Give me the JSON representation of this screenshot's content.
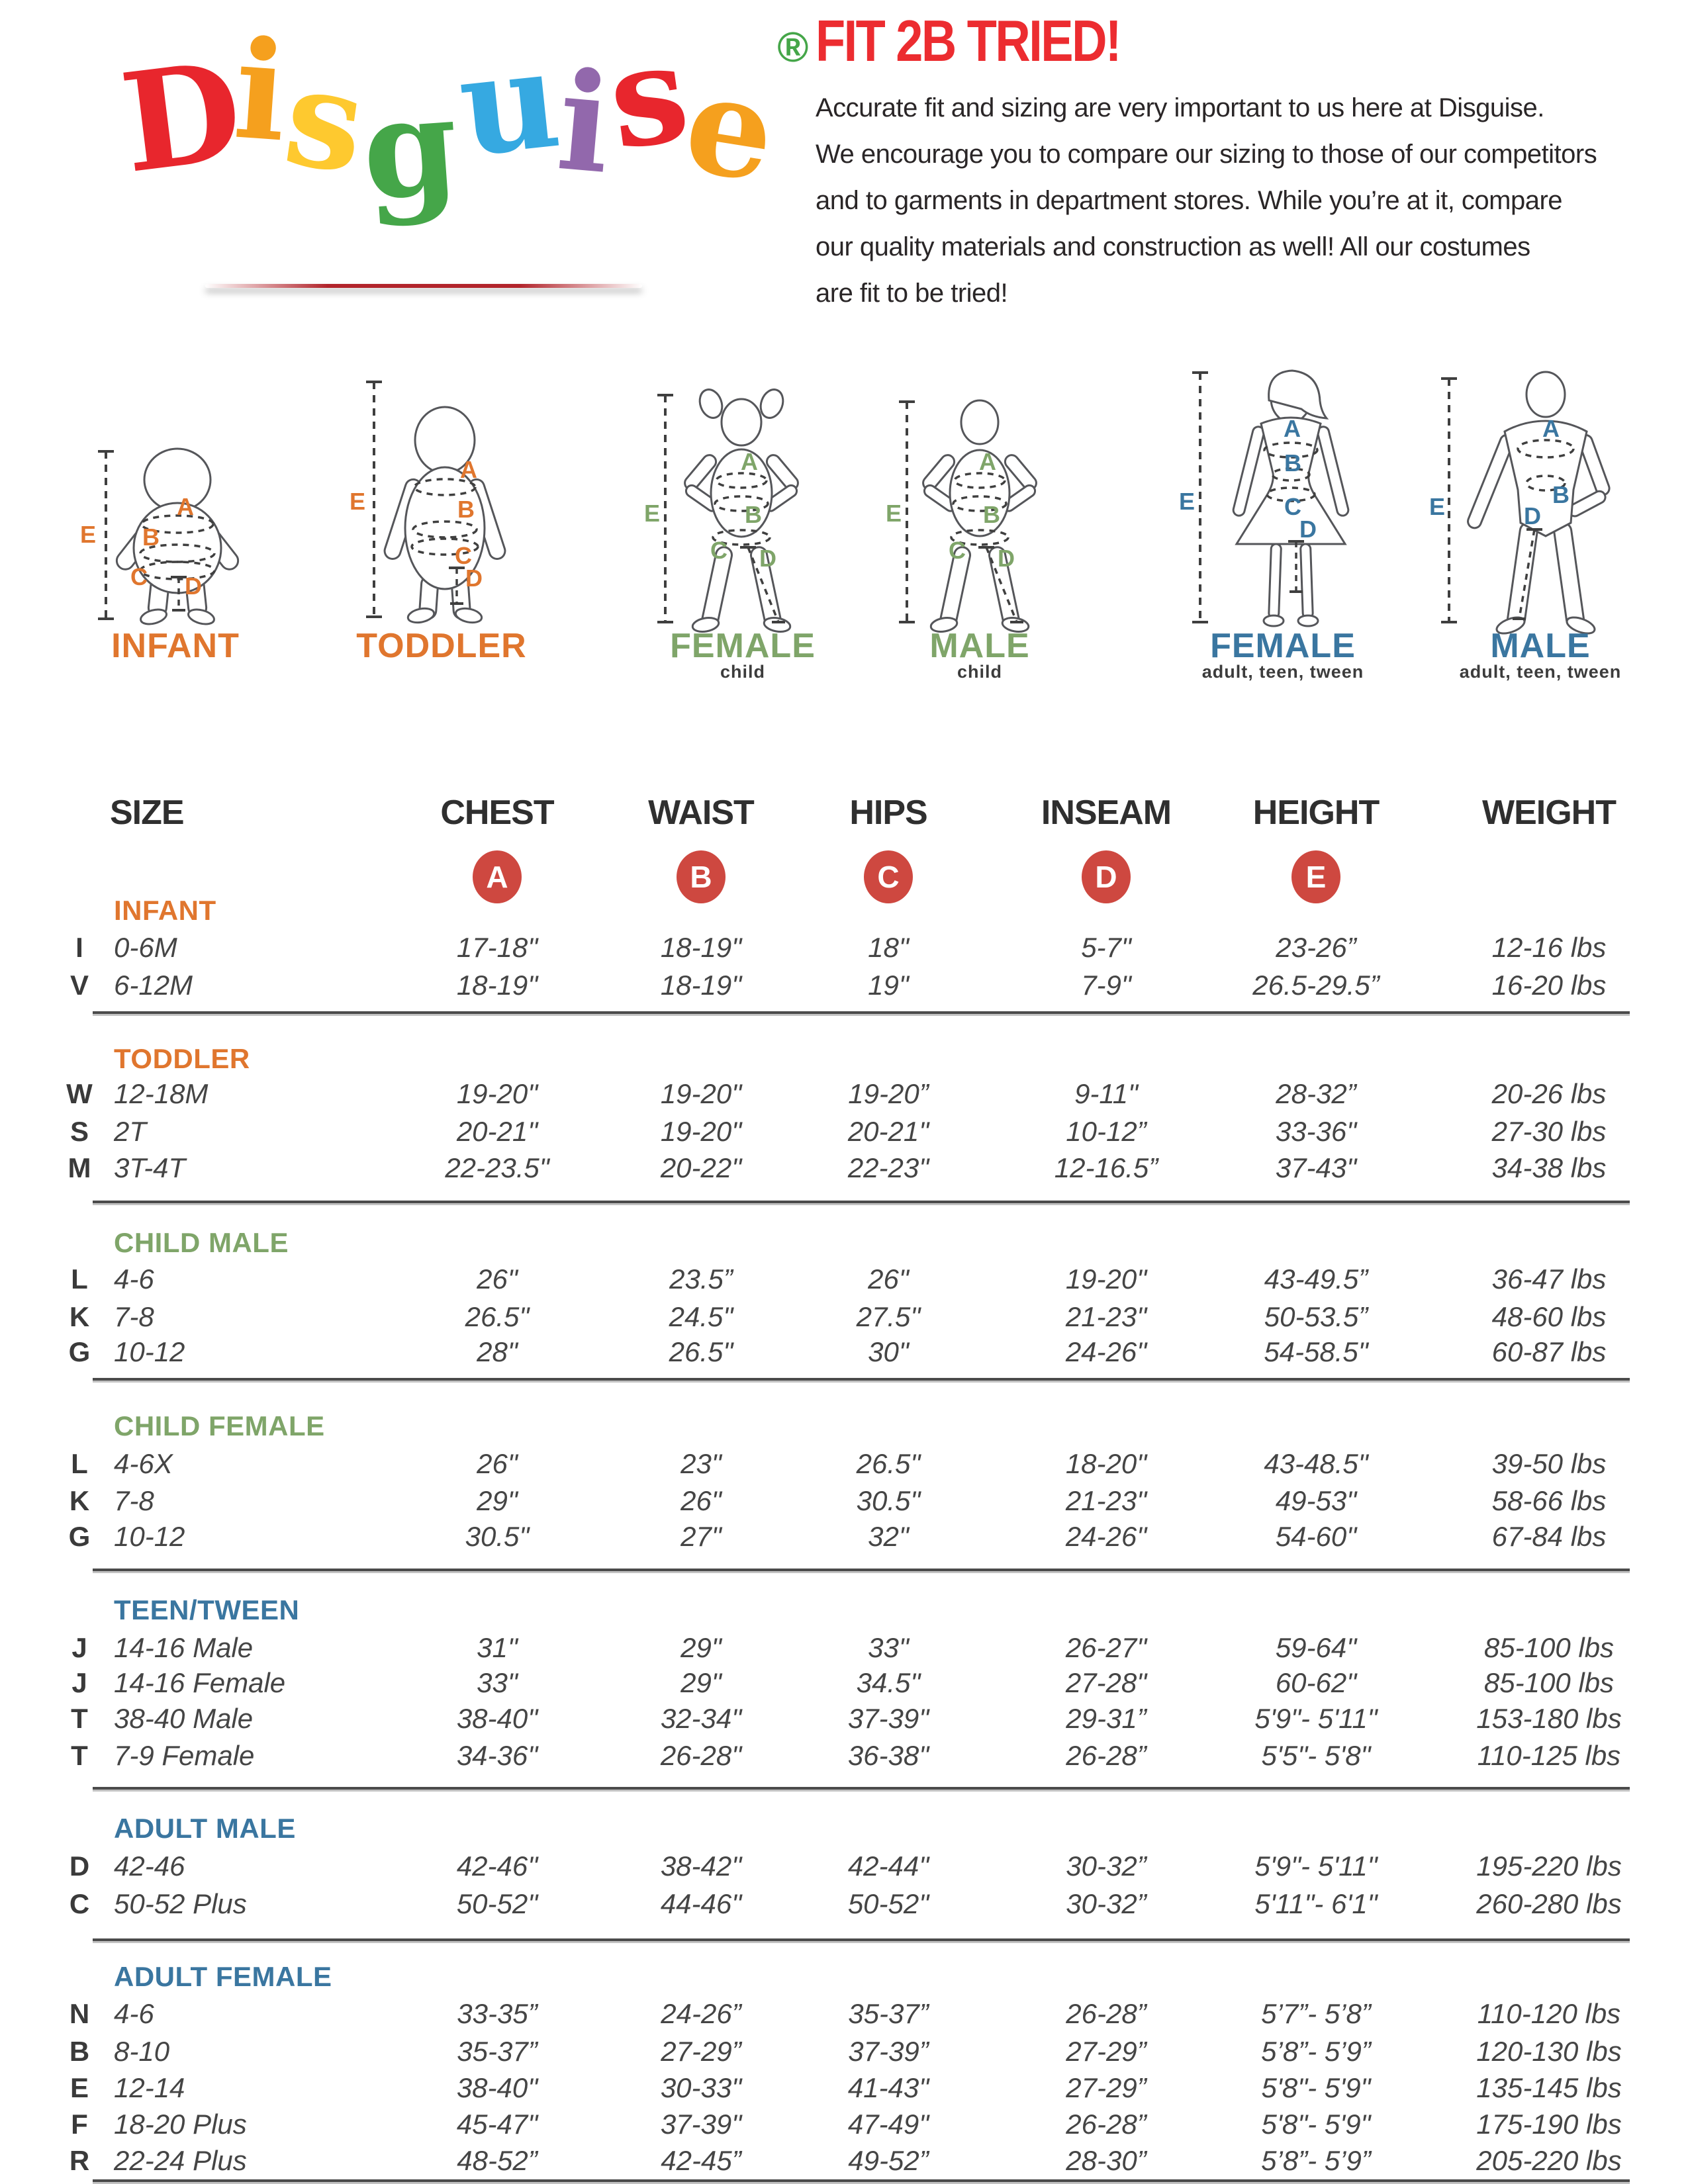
{
  "logo": {
    "word_letters": [
      {
        "ch": "D",
        "color": "#e8262d"
      },
      {
        "ch": "i",
        "color": "#f5a01e"
      },
      {
        "ch": "s",
        "color": "#fec92f"
      },
      {
        "ch": "g",
        "color": "#45a649"
      },
      {
        "ch": "u",
        "color": "#36a9e1"
      },
      {
        "ch": "i",
        "color": "#9268ac"
      },
      {
        "ch": "s",
        "color": "#e8262d"
      },
      {
        "ch": "e",
        "color": "#f5a01e"
      }
    ],
    "registered_mark": "®",
    "registered_color": "#45a649"
  },
  "intro": {
    "title": "FIT 2B TRIED!",
    "title_color": "#ec2c30",
    "lines": [
      "Accurate fit and sizing are very important to us here at Disguise.",
      "We encourage you to compare our sizing to those of our competitors",
      "and to garments in department stores. While you’re at it, compare",
      "our quality materials and construction as well! All our costumes",
      "are fit to be tried!"
    ]
  },
  "figures": [
    {
      "id": "infant",
      "label": "INFANT",
      "sublabel": "",
      "color": "#e0762e"
    },
    {
      "id": "toddler",
      "label": "TODDLER",
      "sublabel": "",
      "color": "#e0762e"
    },
    {
      "id": "female-child",
      "label": "FEMALE",
      "sublabel": "child",
      "color": "#7fa569"
    },
    {
      "id": "male-child",
      "label": "MALE",
      "sublabel": "child",
      "color": "#7fa569"
    },
    {
      "id": "female-adult",
      "label": "FEMALE",
      "sublabel": "adult, teen, tween",
      "color": "#3a76a0"
    },
    {
      "id": "male-adult",
      "label": "MALE",
      "sublabel": "adult, teen, tween",
      "color": "#3a76a0"
    }
  ],
  "measure_badges": [
    "A",
    "B",
    "C",
    "D",
    "E"
  ],
  "badge_color": "#ce4840",
  "table": {
    "columns": [
      "SIZE",
      "CHEST",
      "WAIST",
      "HIPS",
      "INSEAM",
      "HEIGHT",
      "WEIGHT"
    ],
    "sections": [
      {
        "name": "INFANT",
        "color": "#e0762e",
        "rows": [
          {
            "code": "I",
            "size": "0-6M",
            "chest": "17-18\"",
            "waist": "18-19\"",
            "hips": "18\"",
            "inseam": "5-7\"",
            "height": "23-26”",
            "weight": "12-16 lbs"
          },
          {
            "code": "V",
            "size": "6-12M",
            "chest": "18-19\"",
            "waist": "18-19\"",
            "hips": "19\"",
            "inseam": "7-9\"",
            "height": "26.5-29.5”",
            "weight": "16-20 lbs"
          }
        ]
      },
      {
        "name": "TODDLER",
        "color": "#e0762e",
        "rows": [
          {
            "code": "W",
            "size": "12-18M",
            "chest": "19-20\"",
            "waist": "19-20\"",
            "hips": "19-20”",
            "inseam": "9-11\"",
            "height": "28-32”",
            "weight": "20-26 lbs"
          },
          {
            "code": "S",
            "size": "2T",
            "chest": "20-21\"",
            "waist": "19-20\"",
            "hips": "20-21\"",
            "inseam": "10-12”",
            "height": "33-36\"",
            "weight": "27-30 lbs"
          },
          {
            "code": "M",
            "size": "3T-4T",
            "chest": "22-23.5\"",
            "waist": "20-22\"",
            "hips": "22-23\"",
            "inseam": "12-16.5”",
            "height": "37-43\"",
            "weight": "34-38 lbs"
          }
        ]
      },
      {
        "name": "CHILD MALE",
        "color": "#7fa569",
        "rows": [
          {
            "code": "L",
            "size": "4-6",
            "chest": "26\"",
            "waist": "23.5”",
            "hips": "26\"",
            "inseam": "19-20\"",
            "height": "43-49.5”",
            "weight": "36-47 lbs"
          },
          {
            "code": "K",
            "size": "7-8",
            "chest": "26.5\"",
            "waist": "24.5\"",
            "hips": "27.5\"",
            "inseam": "21-23\"",
            "height": "50-53.5”",
            "weight": "48-60 lbs"
          },
          {
            "code": "G",
            "size": "10-12",
            "chest": "28\"",
            "waist": "26.5\"",
            "hips": "30\"",
            "inseam": "24-26\"",
            "height": "54-58.5\"",
            "weight": "60-87 lbs"
          }
        ]
      },
      {
        "name": "CHILD FEMALE",
        "color": "#7fa569",
        "rows": [
          {
            "code": "L",
            "size": "4-6X",
            "chest": "26\"",
            "waist": "23\"",
            "hips": "26.5\"",
            "inseam": "18-20\"",
            "height": "43-48.5\"",
            "weight": "39-50 lbs"
          },
          {
            "code": "K",
            "size": "7-8",
            "chest": "29\"",
            "waist": "26\"",
            "hips": "30.5\"",
            "inseam": "21-23\"",
            "height": "49-53\"",
            "weight": "58-66 lbs"
          },
          {
            "code": "G",
            "size": "10-12",
            "chest": "30.5\"",
            "waist": "27\"",
            "hips": "32\"",
            "inseam": "24-26\"",
            "height": "54-60\"",
            "weight": "67-84 lbs"
          }
        ]
      },
      {
        "name": "TEEN/TWEEN",
        "color": "#3a76a0",
        "rows": [
          {
            "code": "J",
            "size": "14-16 Male",
            "chest": "31\"",
            "waist": "29\"",
            "hips": "33\"",
            "inseam": "26-27\"",
            "height": "59-64\"",
            "weight": "85-100 lbs"
          },
          {
            "code": "J",
            "size": "14-16 Female",
            "chest": "33\"",
            "waist": "29\"",
            "hips": "34.5\"",
            "inseam": "27-28\"",
            "height": "60-62\"",
            "weight": "85-100 lbs"
          },
          {
            "code": "T",
            "size": "38-40 Male",
            "chest": "38-40\"",
            "waist": "32-34\"",
            "hips": "37-39\"",
            "inseam": "29-31”",
            "height": "5'9\"- 5'11\"",
            "weight": "153-180 lbs"
          },
          {
            "code": "T",
            "size": "7-9 Female",
            "chest": "34-36\"",
            "waist": "26-28\"",
            "hips": "36-38\"",
            "inseam": "26-28”",
            "height": "5'5\"- 5'8\"",
            "weight": "110-125 lbs"
          }
        ]
      },
      {
        "name": "ADULT MALE",
        "color": "#3a76a0",
        "rows": [
          {
            "code": "D",
            "size": "42-46",
            "chest": "42-46\"",
            "waist": "38-42\"",
            "hips": "42-44\"",
            "inseam": "30-32”",
            "height": "5'9\"- 5'11\"",
            "weight": "195-220 lbs"
          },
          {
            "code": "C",
            "size": "50-52 Plus",
            "chest": "50-52\"",
            "waist": "44-46\"",
            "hips": "50-52\"",
            "inseam": "30-32”",
            "height": "5'11\"- 6'1\"",
            "weight": "260-280 lbs"
          }
        ]
      },
      {
        "name": "ADULT FEMALE",
        "color": "#3a76a0",
        "rows": [
          {
            "code": "N",
            "size": "4-6",
            "chest": "33-35”",
            "waist": "24-26”",
            "hips": "35-37”",
            "inseam": "26-28”",
            "height": "5’7”- 5’8”",
            "weight": "110-120 lbs"
          },
          {
            "code": "B",
            "size": "8-10",
            "chest": "35-37”",
            "waist": "27-29”",
            "hips": "37-39”",
            "inseam": "27-29”",
            "height": "5’8”- 5’9”",
            "weight": "120-130 lbs"
          },
          {
            "code": "E",
            "size": "12-14",
            "chest": "38-40\"",
            "waist": "30-33\"",
            "hips": "41-43\"",
            "inseam": "27-29”",
            "height": "5'8\"- 5'9\"",
            "weight": "135-145 lbs"
          },
          {
            "code": "F",
            "size": "18-20 Plus",
            "chest": "45-47\"",
            "waist": "37-39\"",
            "hips": "47-49\"",
            "inseam": "26-28”",
            "height": "5'8\"- 5'9\"",
            "weight": "175-190 lbs"
          },
          {
            "code": "R",
            "size": "22-24 Plus",
            "chest": "48-52”",
            "waist": "42-45”",
            "hips": "49-52”",
            "inseam": "28-30”",
            "height": "5’8”- 5’9”",
            "weight": "205-220 lbs"
          }
        ]
      }
    ]
  }
}
